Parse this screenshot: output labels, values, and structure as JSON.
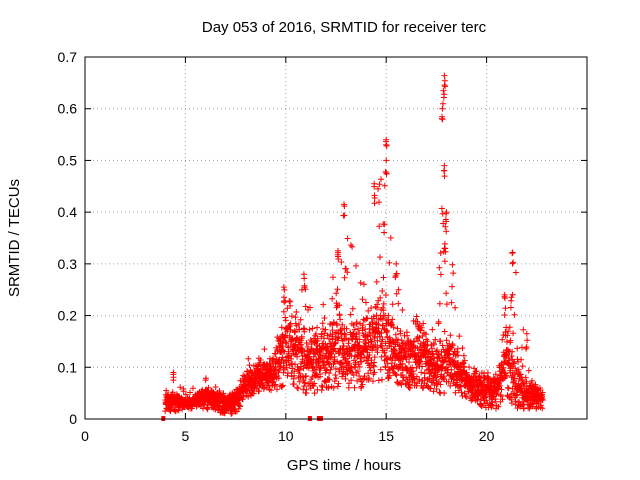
{
  "chart_data": {
    "type": "scatter",
    "title": "Day 053 of 2016, SRMTID for receiver terc",
    "xlabel": "GPS time / hours",
    "ylabel": "SRMTID / TECUs",
    "xlim": [
      0,
      25
    ],
    "ylim": [
      0,
      0.7
    ],
    "xticks": [
      0,
      5,
      10,
      15,
      20
    ],
    "yticks": [
      0,
      0.1,
      0.2,
      0.3,
      0.4,
      0.5,
      0.6,
      0.7
    ],
    "xtick_labels": [
      "0",
      "5",
      "10",
      "15",
      "20"
    ],
    "ytick_labels": [
      "0",
      "0.1",
      "0.2",
      "0.3",
      "0.4",
      "0.5",
      "0.6",
      "0.7"
    ],
    "grid": true,
    "marker": "+",
    "colors": {
      "series": "#ff0000",
      "grid": "#a0a0a0",
      "axis": "#000000"
    },
    "series": [
      {
        "name": "SRMTID",
        "envelope": {
          "x": [
            4.0,
            4.5,
            5.0,
            5.5,
            6.0,
            6.5,
            7.0,
            7.5,
            8.0,
            8.5,
            9.0,
            9.5,
            10.0,
            10.5,
            11.0,
            11.5,
            12.0,
            12.5,
            13.0,
            13.5,
            14.0,
            14.5,
            15.0,
            15.5,
            16.0,
            16.5,
            17.0,
            17.5,
            18.0,
            18.5,
            19.0,
            19.5,
            20.0,
            20.5,
            21.0,
            21.5,
            22.0,
            22.5,
            22.8
          ],
          "median": [
            0.035,
            0.035,
            0.03,
            0.035,
            0.045,
            0.04,
            0.03,
            0.035,
            0.07,
            0.085,
            0.085,
            0.1,
            0.16,
            0.14,
            0.12,
            0.12,
            0.12,
            0.16,
            0.12,
            0.13,
            0.14,
            0.16,
            0.16,
            0.13,
            0.12,
            0.13,
            0.12,
            0.1,
            0.12,
            0.1,
            0.07,
            0.065,
            0.06,
            0.055,
            0.12,
            0.07,
            0.05,
            0.045,
            0.045
          ],
          "high": [
            0.06,
            0.07,
            0.06,
            0.06,
            0.08,
            0.07,
            0.05,
            0.06,
            0.12,
            0.12,
            0.14,
            0.15,
            0.25,
            0.22,
            0.27,
            0.18,
            0.24,
            0.33,
            0.42,
            0.3,
            0.32,
            0.46,
            0.54,
            0.3,
            0.2,
            0.2,
            0.18,
            0.18,
            0.66,
            0.22,
            0.12,
            0.1,
            0.1,
            0.1,
            0.24,
            0.32,
            0.1,
            0.07,
            0.07
          ],
          "low": [
            0.015,
            0.015,
            0.02,
            0.02,
            0.02,
            0.015,
            0.01,
            0.01,
            0.04,
            0.05,
            0.06,
            0.05,
            0.07,
            0.06,
            0.05,
            0.05,
            0.06,
            0.06,
            0.06,
            0.06,
            0.06,
            0.07,
            0.08,
            0.07,
            0.06,
            0.06,
            0.06,
            0.05,
            0.05,
            0.05,
            0.04,
            0.03,
            0.02,
            0.02,
            0.04,
            0.02,
            0.02,
            0.02,
            0.02
          ]
        },
        "peaks": [
          {
            "x": 4.4,
            "y": 0.09
          },
          {
            "x": 9.9,
            "y": 0.255
          },
          {
            "x": 10.9,
            "y": 0.28
          },
          {
            "x": 12.6,
            "y": 0.325
          },
          {
            "x": 12.9,
            "y": 0.415
          },
          {
            "x": 14.4,
            "y": 0.455
          },
          {
            "x": 15.0,
            "y": 0.54
          },
          {
            "x": 15.0,
            "y": 0.5
          },
          {
            "x": 15.5,
            "y": 0.3
          },
          {
            "x": 17.9,
            "y": 0.664
          },
          {
            "x": 17.85,
            "y": 0.635
          },
          {
            "x": 17.8,
            "y": 0.6
          },
          {
            "x": 17.9,
            "y": 0.49
          },
          {
            "x": 18.0,
            "y": 0.4
          },
          {
            "x": 17.9,
            "y": 0.33
          },
          {
            "x": 20.9,
            "y": 0.24
          },
          {
            "x": 21.3,
            "y": 0.322
          },
          {
            "x": 22.0,
            "y": 0.165
          }
        ],
        "zero_points": [
          {
            "x": 3.9,
            "y": 0.0
          },
          {
            "x": 11.2,
            "y": 0.0
          },
          {
            "x": 11.65,
            "y": 0.0
          },
          {
            "x": 11.75,
            "y": 0.0
          }
        ]
      }
    ]
  }
}
